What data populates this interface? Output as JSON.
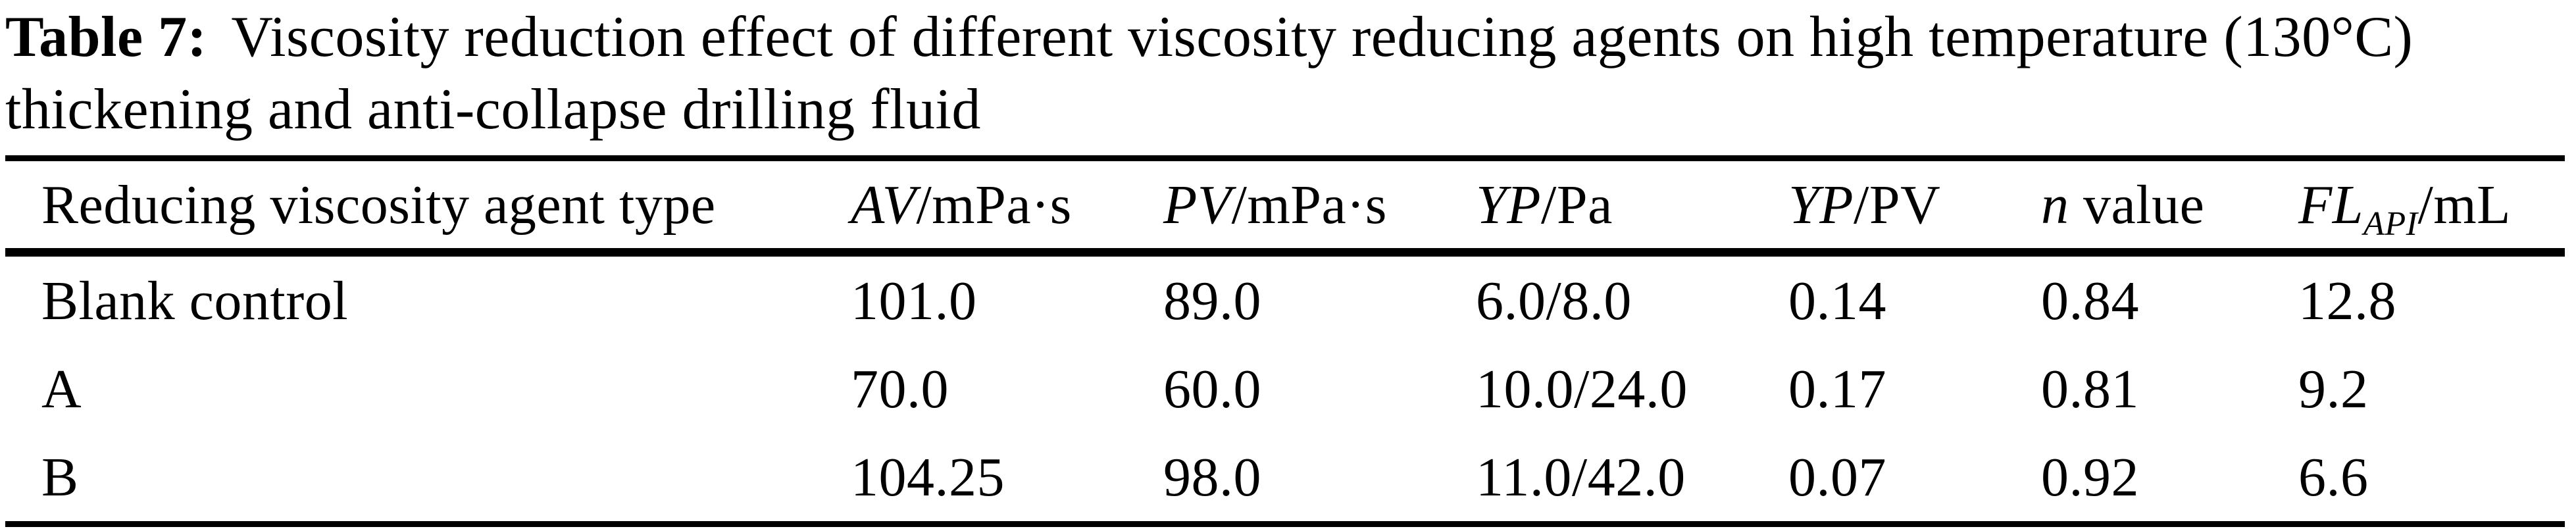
{
  "caption": {
    "label": "Table 7:",
    "line1_rest": "Viscosity reduction effect of different viscosity reducing agents on high temperature (130°C)",
    "line2": "thickening and anti-collapse drilling fluid"
  },
  "table": {
    "columns": [
      {
        "name": "reducing-viscosity-agent-type",
        "segments": [
          {
            "t": "Reducing viscosity agent type"
          }
        ]
      },
      {
        "name": "av-mpas",
        "segments": [
          {
            "t": "AV",
            "i": true
          },
          {
            "t": "/mPa·s"
          }
        ]
      },
      {
        "name": "pv-mpas",
        "segments": [
          {
            "t": "PV",
            "i": true
          },
          {
            "t": "/mPa·s"
          }
        ]
      },
      {
        "name": "yp-pa",
        "segments": [
          {
            "t": "YP",
            "i": true
          },
          {
            "t": "/Pa"
          }
        ]
      },
      {
        "name": "yp-pv",
        "segments": [
          {
            "t": "YP",
            "i": true
          },
          {
            "t": "/PV"
          }
        ]
      },
      {
        "name": "n-value",
        "segments": [
          {
            "t": "n",
            "i": true
          },
          {
            "t": " value"
          }
        ]
      },
      {
        "name": "fl-api-ml",
        "segments": [
          {
            "t": "FL",
            "i": true
          },
          {
            "t": "API",
            "sub": true
          },
          {
            "t": "/mL"
          }
        ]
      }
    ],
    "rows": [
      [
        "Blank control",
        "101.0",
        "89.0",
        "6.0/8.0",
        "0.14",
        "0.84",
        "12.8"
      ],
      [
        "A",
        "70.0",
        "60.0",
        "10.0/24.0",
        "0.17",
        "0.81",
        "9.2"
      ],
      [
        "B",
        "104.25",
        "98.0",
        "11.0/42.0",
        "0.07",
        "0.92",
        "6.6"
      ]
    ]
  },
  "colors": {
    "text": "#000000",
    "background": "#ffffff",
    "rule": "#000000"
  }
}
